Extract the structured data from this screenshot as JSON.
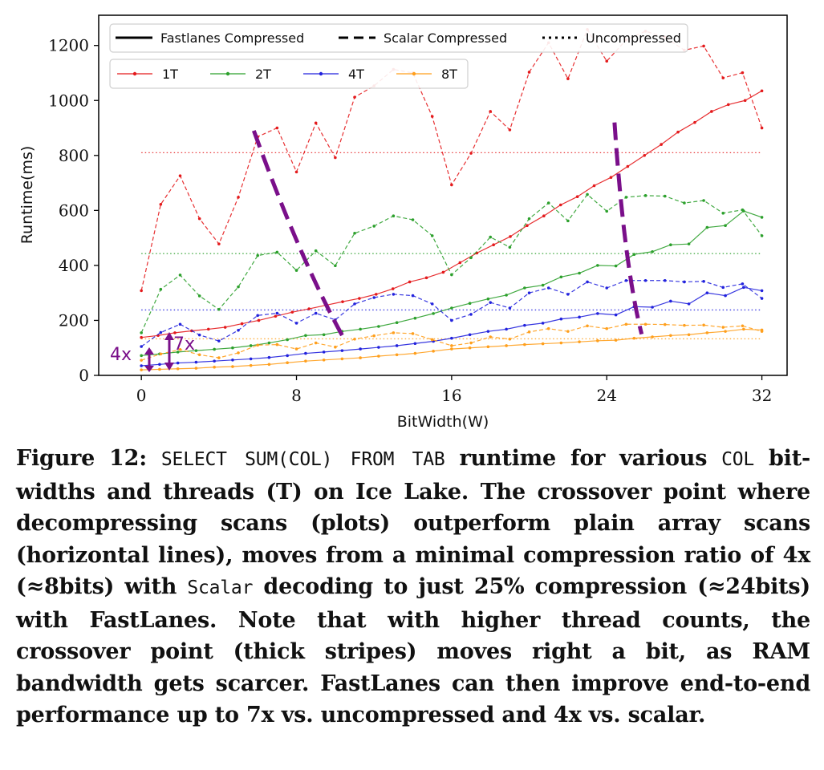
{
  "chart_data": {
    "type": "line",
    "xlabel": "BitWidth(W)",
    "ylabel": "Runtime(ms)",
    "xlim": [
      -2.2,
      33.3
    ],
    "ylim": [
      0,
      1310
    ],
    "xticks": [
      0,
      8,
      16,
      24,
      32
    ],
    "yticks": [
      0,
      200,
      400,
      600,
      800,
      1000,
      1200
    ],
    "style_legend": [
      {
        "label": "Fastlanes Compressed",
        "dash": "solid"
      },
      {
        "label": "Scalar Compressed",
        "dash": "dashed"
      },
      {
        "label": "Uncompressed",
        "dash": "dotted"
      }
    ],
    "thread_series": [
      {
        "name": "1T",
        "color": "#e41a1c",
        "fastlanes": [
          138,
          145,
          155,
          162,
          168,
          175,
          188,
          200,
          215,
          230,
          242,
          255,
          268,
          280,
          295,
          315,
          340,
          355,
          375,
          410,
          445,
          475,
          505,
          545,
          580,
          620,
          650,
          690,
          720,
          760,
          800,
          840,
          885,
          920,
          960,
          985,
          1000,
          1035
        ],
        "scalar": [
          308,
          622,
          726,
          570,
          478,
          648,
          868,
          900,
          740,
          918,
          792,
          1012,
          1053,
          1113,
          1100,
          942,
          693,
          808,
          960,
          893,
          1103,
          1210,
          1079,
          1258,
          1143,
          1220,
          1252,
          1230,
          1183,
          1198,
          1082,
          1101,
          900
        ],
        "uncompressed": 810
      },
      {
        "name": "2T",
        "color": "#2ca02c",
        "fastlanes": [
          72,
          78,
          85,
          90,
          95,
          100,
          108,
          118,
          130,
          145,
          148,
          160,
          168,
          178,
          192,
          208,
          225,
          245,
          262,
          278,
          292,
          318,
          328,
          358,
          372,
          400,
          398,
          440,
          450,
          475,
          478,
          538,
          545,
          598,
          575
        ],
        "scalar": [
          155,
          313,
          365,
          289,
          240,
          322,
          436,
          448,
          382,
          453,
          399,
          517,
          543,
          580,
          566,
          508,
          366,
          428,
          503,
          466,
          570,
          627,
          562,
          658,
          597,
          648,
          654,
          652,
          627,
          636,
          590,
          602,
          508
        ],
        "uncompressed": 443
      },
      {
        "name": "4T",
        "color": "#2222dd",
        "fastlanes": [
          35,
          40,
          45,
          48,
          52,
          56,
          60,
          65,
          72,
          80,
          85,
          90,
          96,
          102,
          108,
          116,
          124,
          135,
          148,
          160,
          168,
          182,
          190,
          205,
          212,
          225,
          220,
          250,
          248,
          270,
          260,
          300,
          290,
          320,
          308
        ],
        "scalar": [
          105,
          156,
          186,
          147,
          125,
          164,
          218,
          226,
          190,
          226,
          202,
          260,
          283,
          295,
          290,
          260,
          200,
          222,
          265,
          245,
          300,
          318,
          295,
          340,
          318,
          345,
          345,
          345,
          340,
          342,
          320,
          333,
          280
        ],
        "uncompressed": 238
      },
      {
        "name": "8T",
        "color": "#ff9f1c",
        "fastlanes": [
          20,
          22,
          24,
          26,
          30,
          32,
          36,
          40,
          46,
          52,
          56,
          60,
          64,
          70,
          75,
          80,
          88,
          96,
          100,
          104,
          108,
          112,
          115,
          118,
          122,
          126,
          128,
          135,
          140,
          145,
          148,
          155,
          160,
          168,
          165
        ],
        "scalar": [
          55,
          78,
          94,
          75,
          64,
          82,
          110,
          112,
          96,
          118,
          103,
          132,
          144,
          155,
          152,
          130,
          108,
          118,
          140,
          132,
          158,
          170,
          160,
          180,
          170,
          186,
          186,
          185,
          182,
          183,
          175,
          180,
          160
        ],
        "uncompressed": 133
      }
    ],
    "annotations": [
      {
        "text": "4x",
        "color": "#7a0f8a"
      },
      {
        "text": "7x",
        "color": "#7a0f8a"
      }
    ]
  },
  "caption": {
    "prefix": "Figure 12: ",
    "code1": "SELECT SUM(COL) FROM TAB",
    "part2": " runtime for various ",
    "code2": "COL",
    "part3": " bit-widths and threads (T) on Ice Lake. The crossover point where decompressing scans (plots) outperform plain array scans (horizontal lines), moves from a minimal compression ratio of 4x (≈8bits) with ",
    "code3": "Scalar",
    "part4": " decoding to just 25% compression (≈24bits) with FastLanes. Note that with higher thread counts, the crossover point (thick stripes) moves right a bit, as RAM bandwidth gets scarcer. FastLanes can then improve end-to-end performance up to 7x vs. uncompressed and 4x vs. scalar."
  }
}
